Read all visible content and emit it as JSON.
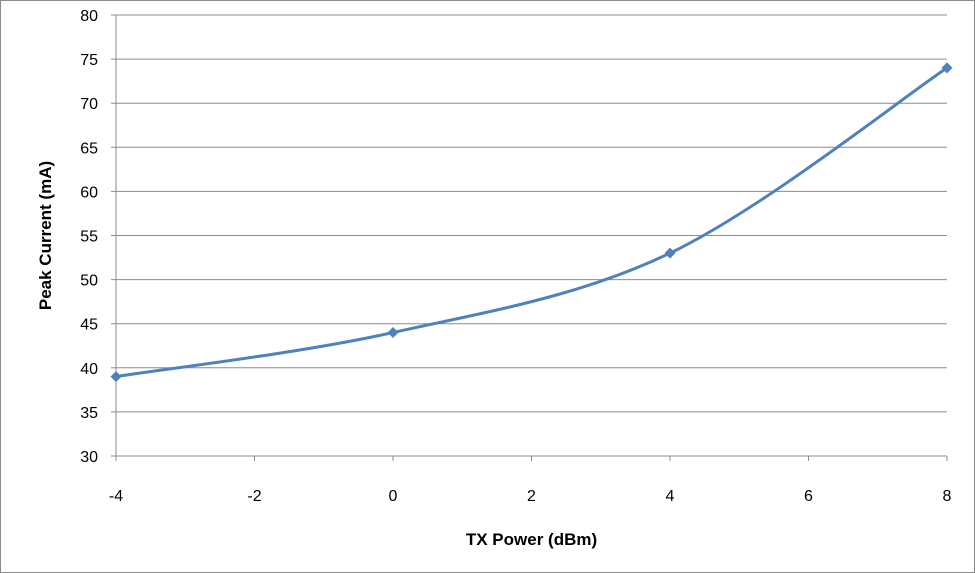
{
  "chart_data": {
    "type": "line",
    "title": "",
    "xlabel": "TX Power (dBm)",
    "ylabel": "Peak Current (mA)",
    "xlim": [
      -4,
      8
    ],
    "ylim": [
      30,
      80
    ],
    "xticks": [
      -4,
      -2,
      0,
      2,
      4,
      6,
      8
    ],
    "yticks": [
      30,
      35,
      40,
      45,
      50,
      55,
      60,
      65,
      70,
      75,
      80
    ],
    "grid": true,
    "legend": "none",
    "smooth": true,
    "marker": "diamond",
    "series": [
      {
        "color": "#4f81bd",
        "x": [
          -4,
          0,
          4,
          8
        ],
        "y": [
          39,
          44,
          53,
          74
        ]
      }
    ]
  }
}
